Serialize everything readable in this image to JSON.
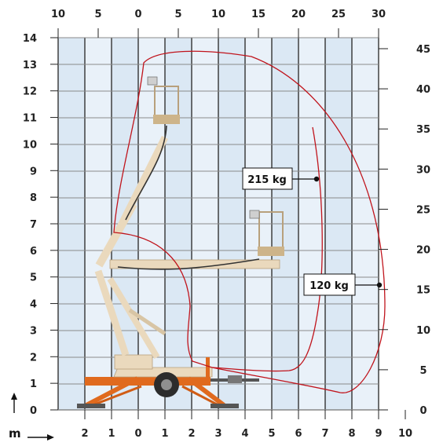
{
  "chart_data": {
    "type": "diagram",
    "left_axis_ticks": [
      "0",
      "1",
      "2",
      "3",
      "4",
      "5",
      "6",
      "7",
      "8",
      "9",
      "10",
      "11",
      "12",
      "13",
      "14"
    ],
    "right_axis_ticks": [
      "0",
      "5",
      "10",
      "15",
      "20",
      "25",
      "30",
      "35",
      "40",
      "45"
    ],
    "top_axis_ticks": [
      "10",
      "5",
      "0",
      "5",
      "10",
      "15",
      "20",
      "25",
      "30"
    ],
    "bottom_axis_ticks": [
      "2",
      "1",
      "0",
      "1",
      "2",
      "3",
      "4",
      "5",
      "6",
      "7",
      "8",
      "9",
      "10"
    ],
    "unit_label": "m",
    "outer_envelope_capacity": "120 kg",
    "inner_envelope_capacity": "215 kg",
    "colors": {
      "envelope": "#c0141c",
      "grid_major": "#333333",
      "grid_minor": "#9a9a9a",
      "shade": "#dbe8f4",
      "boom": "#ead9bd",
      "chassis": "#e06a1e"
    }
  }
}
